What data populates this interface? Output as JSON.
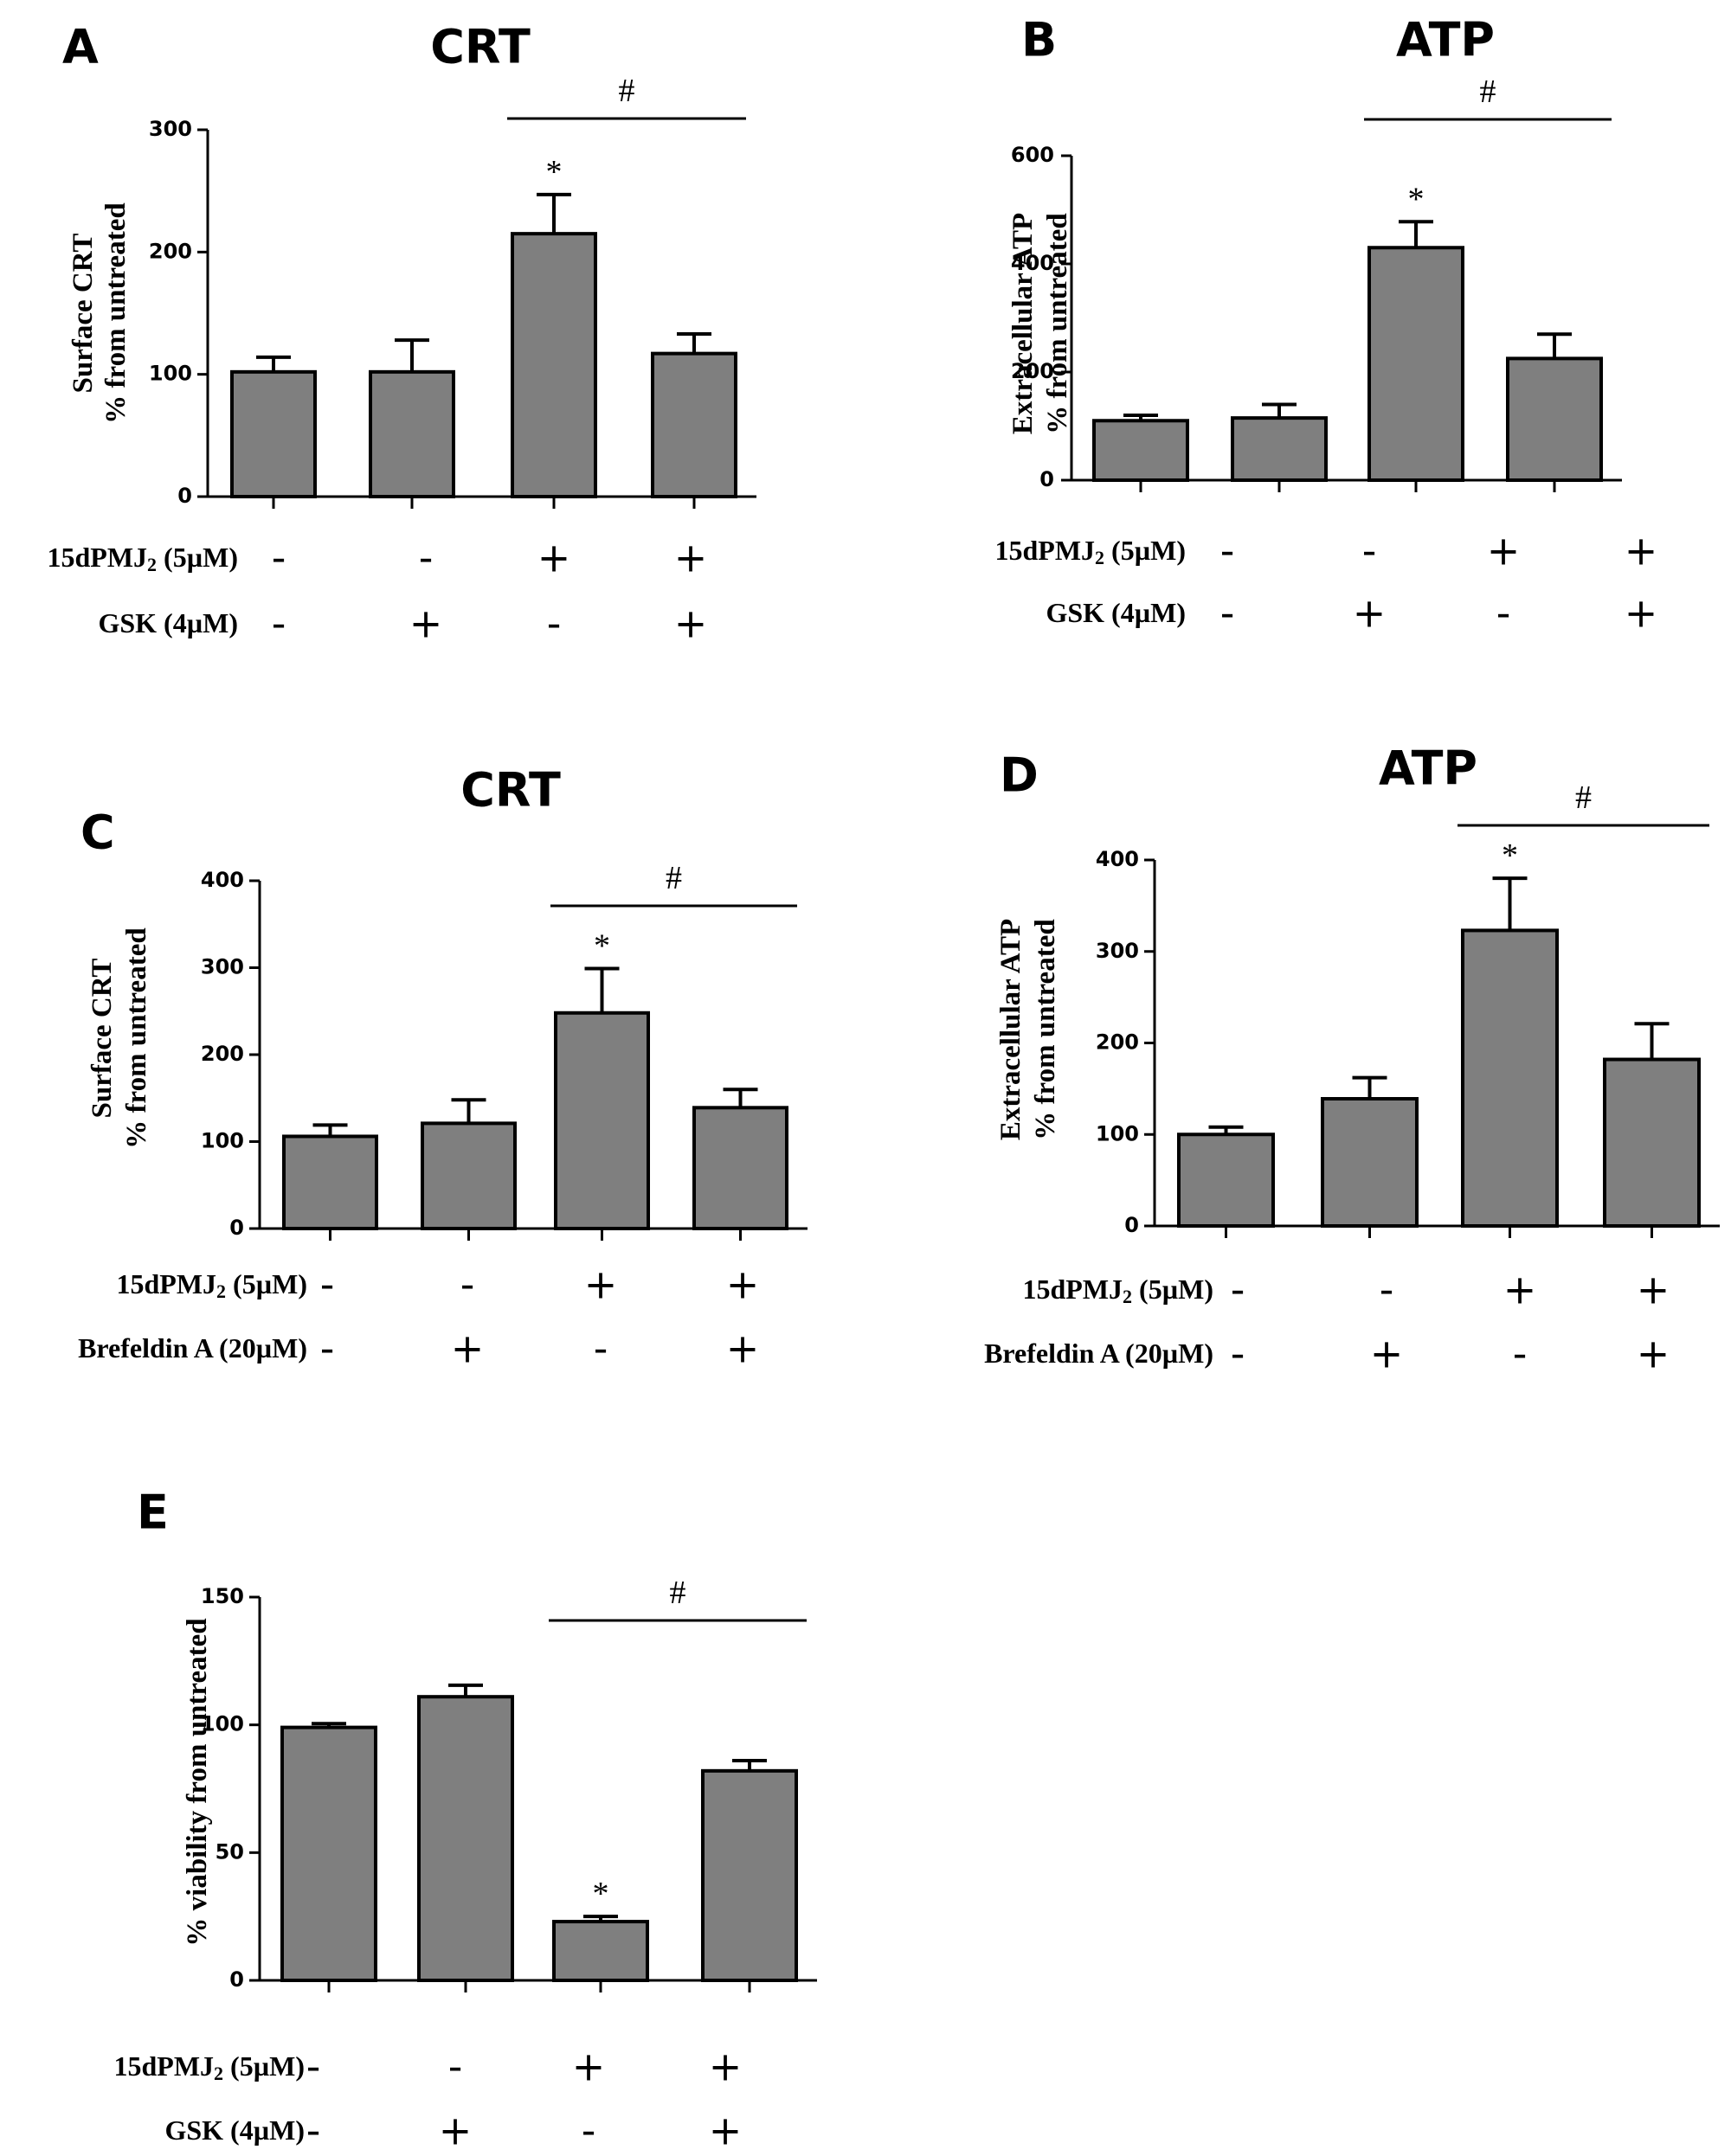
{
  "chart_data": [
    {
      "type": "bar",
      "panel_letter": "A",
      "title": "CRT",
      "ylabel": [
        "Surface CRT",
        "% from untreated"
      ],
      "ylim": [
        0,
        300
      ],
      "yticks": [
        0,
        100,
        200,
        300
      ],
      "values": [
        102,
        102,
        215,
        117
      ],
      "errors": [
        12,
        26,
        32,
        16
      ],
      "significance": [
        {
          "bar": 2,
          "label": "*"
        }
      ],
      "bracket": {
        "from": 2,
        "to": 3,
        "label": "#"
      },
      "conditions": [
        {
          "label": "15dPMJ",
          "subscript": "2",
          "suffix": " (5µM)",
          "signs": [
            "-",
            "-",
            "+",
            "+"
          ]
        },
        {
          "label": "GSK (4µM)",
          "subscript": "",
          "suffix": "",
          "signs": [
            "-",
            "+",
            "-",
            "+"
          ]
        }
      ]
    },
    {
      "type": "bar",
      "panel_letter": "B",
      "title": "ATP",
      "ylabel": [
        "Extracellular ATP",
        "% from untreated"
      ],
      "ylim": [
        0,
        600
      ],
      "yticks": [
        0,
        200,
        400,
        600
      ],
      "values": [
        110,
        115,
        430,
        225
      ],
      "errors": [
        10,
        25,
        48,
        45
      ],
      "significance": [
        {
          "bar": 2,
          "label": "*"
        }
      ],
      "bracket": {
        "from": 2,
        "to": 3,
        "label": "#"
      },
      "conditions": [
        {
          "label": "15dPMJ",
          "subscript": "2",
          "suffix": " (5µM)",
          "signs": [
            "-",
            "-",
            "+",
            "+"
          ]
        },
        {
          "label": "GSK (4µM)",
          "subscript": "",
          "suffix": "",
          "signs": [
            "-",
            "+",
            "-",
            "+"
          ]
        }
      ]
    },
    {
      "type": "bar",
      "panel_letter": "C",
      "title": "CRT",
      "ylabel": [
        "Surface CRT",
        "% from untreated"
      ],
      "ylim": [
        0,
        400
      ],
      "yticks": [
        0,
        100,
        200,
        300,
        400
      ],
      "values": [
        106,
        121,
        248,
        139
      ],
      "errors": [
        13,
        27,
        51,
        21
      ],
      "significance": [
        {
          "bar": 2,
          "label": "*"
        }
      ],
      "bracket": {
        "from": 2,
        "to": 3,
        "label": "#"
      },
      "conditions": [
        {
          "label": "15dPMJ",
          "subscript": "2",
          "suffix": " (5µM)",
          "signs": [
            "-",
            "-",
            "+",
            "+"
          ]
        },
        {
          "label": "Brefeldin A (20µM)",
          "subscript": "",
          "suffix": "",
          "signs": [
            "-",
            "+",
            "-",
            "+"
          ]
        }
      ]
    },
    {
      "type": "bar",
      "panel_letter": "D",
      "title": "ATP",
      "ylabel": [
        "Extracellular ATP",
        "% from untreated"
      ],
      "ylim": [
        0,
        400
      ],
      "yticks": [
        0,
        100,
        200,
        300,
        400
      ],
      "values": [
        100,
        139,
        323,
        182
      ],
      "errors": [
        8,
        23,
        57,
        39
      ],
      "significance": [
        {
          "bar": 2,
          "label": "*"
        }
      ],
      "bracket": {
        "from": 2,
        "to": 3,
        "label": "#"
      },
      "conditions": [
        {
          "label": "15dPMJ",
          "subscript": "2",
          "suffix": " (5µM)",
          "signs": [
            "-",
            "-",
            "+",
            "+"
          ]
        },
        {
          "label": "Brefeldin A (20µM)",
          "subscript": "",
          "suffix": "",
          "signs": [
            "-",
            "+",
            "-",
            "+"
          ]
        }
      ]
    },
    {
      "type": "bar",
      "panel_letter": "E",
      "title": "",
      "ylabel": [
        "%  viability from untreated"
      ],
      "ylim": [
        0,
        150
      ],
      "yticks": [
        0,
        50,
        100,
        150
      ],
      "values": [
        99,
        111,
        23,
        82
      ],
      "errors": [
        1.5,
        4.5,
        2,
        4
      ],
      "significance": [
        {
          "bar": 2,
          "label": "*"
        }
      ],
      "bracket": {
        "from": 2,
        "to": 3,
        "label": "#"
      },
      "conditions": [
        {
          "label": "15dPMJ",
          "subscript": "2",
          "suffix": " (5µM)",
          "signs": [
            "-",
            "-",
            "+",
            "+"
          ]
        },
        {
          "label": "GSK (4µM)",
          "subscript": "",
          "suffix": "",
          "signs": [
            "-",
            "+",
            "-",
            "+"
          ]
        }
      ]
    }
  ]
}
